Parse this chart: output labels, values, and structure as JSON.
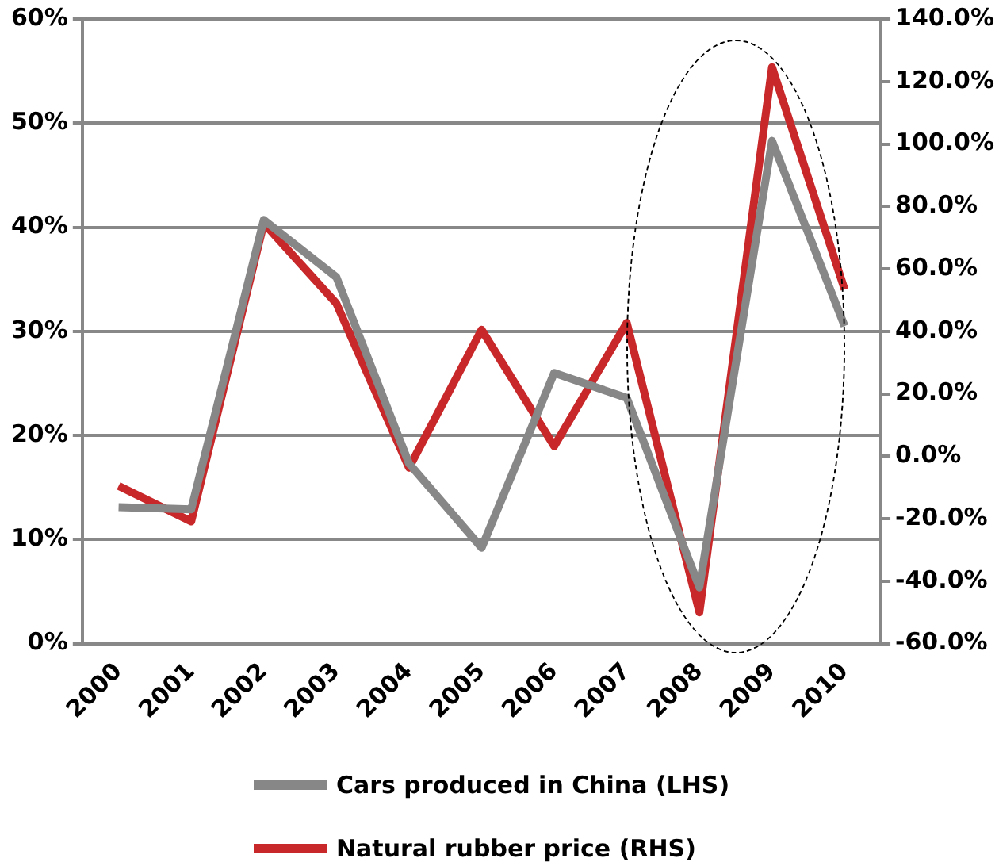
{
  "chart_data": {
    "type": "line",
    "categories": [
      "2000",
      "2001",
      "2002",
      "2003",
      "2004",
      "2005",
      "2006",
      "2007",
      "2008",
      "2009",
      "2010"
    ],
    "series": [
      {
        "name": "Cars produced in China (LHS)",
        "color": "#878787",
        "values": [
          13.1,
          12.9,
          40.7,
          35.2,
          17.3,
          9.2,
          26.0,
          23.6,
          5.4,
          48.3,
          30.5
        ]
      },
      {
        "name": "Natural rubber price (RHS)",
        "color": "#c8282a",
        "axis": "y2",
        "values": [
          -9.5,
          -20.9,
          74.6,
          48.9,
          -3.7,
          40.5,
          3.2,
          42.7,
          -50,
          124.6,
          53.4
        ]
      }
    ],
    "ylim": [
      0,
      60
    ],
    "yticks": [
      {
        "value": 0,
        "label": "0%"
      },
      {
        "value": 10,
        "label": "10%"
      },
      {
        "value": 20,
        "label": "20%"
      },
      {
        "value": 30,
        "label": "30%"
      },
      {
        "value": 40,
        "label": "40%"
      },
      {
        "value": 50,
        "label": "50%"
      },
      {
        "value": 60,
        "label": "60%"
      }
    ],
    "y2lim": [
      -60,
      140
    ],
    "y2ticks": [
      {
        "value": -60,
        "label": "-60.0%"
      },
      {
        "value": -40,
        "label": "-40.0%"
      },
      {
        "value": -20,
        "label": "-20.0%"
      },
      {
        "value": 0,
        "label": "0.0%"
      },
      {
        "value": 20,
        "label": "20.0%"
      },
      {
        "value": 40,
        "label": "40.0%"
      },
      {
        "value": 60,
        "label": "60.0%"
      },
      {
        "value": 80,
        "label": "80.0%"
      },
      {
        "value": 100,
        "label": "100.0%"
      },
      {
        "value": 120,
        "label": "120.0%"
      },
      {
        "value": 140,
        "label": "140.0%"
      }
    ],
    "grid": "y",
    "legend": "bottom",
    "marker": "none",
    "line_style": "solid"
  }
}
